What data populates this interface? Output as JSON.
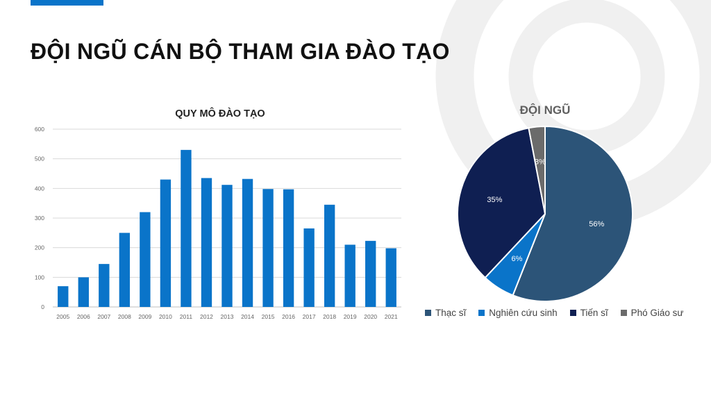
{
  "slide": {
    "title": "ĐỘI NGŨ CÁN BỘ THAM GIA ĐÀO TẠO"
  },
  "colors": {
    "accent": "#0a74c9",
    "bar": "#0a74c9",
    "pie": [
      "#2c5478",
      "#0a74c9",
      "#0f1f52",
      "#6b6b6b"
    ],
    "decoration": "#f0f0f0"
  },
  "chart_data": [
    {
      "type": "bar",
      "title": "QUY MÔ ĐÀO TẠO",
      "categories": [
        "2005",
        "2006",
        "2007",
        "2008",
        "2009",
        "2010",
        "2011",
        "2012",
        "2013",
        "2014",
        "2015",
        "2016",
        "2017",
        "2018",
        "2019",
        "2020",
        "2021"
      ],
      "values": [
        70,
        100,
        145,
        250,
        320,
        430,
        530,
        435,
        412,
        432,
        398,
        397,
        265,
        345,
        210,
        223,
        198
      ],
      "yticks": [
        "0",
        "100",
        "200",
        "300",
        "400",
        "500",
        "600"
      ],
      "ylim": [
        0,
        600
      ],
      "grid": true,
      "legend": "none"
    },
    {
      "type": "pie",
      "title": "ĐỘI NGŨ",
      "categories": [
        "Thạc sĩ",
        "Nghiên cứu sinh",
        "Tiến sĩ",
        "Phó Giáo sư"
      ],
      "values": [
        56,
        6,
        35,
        3
      ],
      "labels": [
        "56%",
        "6%",
        "35%",
        "3%"
      ],
      "legend": "bottom"
    }
  ]
}
